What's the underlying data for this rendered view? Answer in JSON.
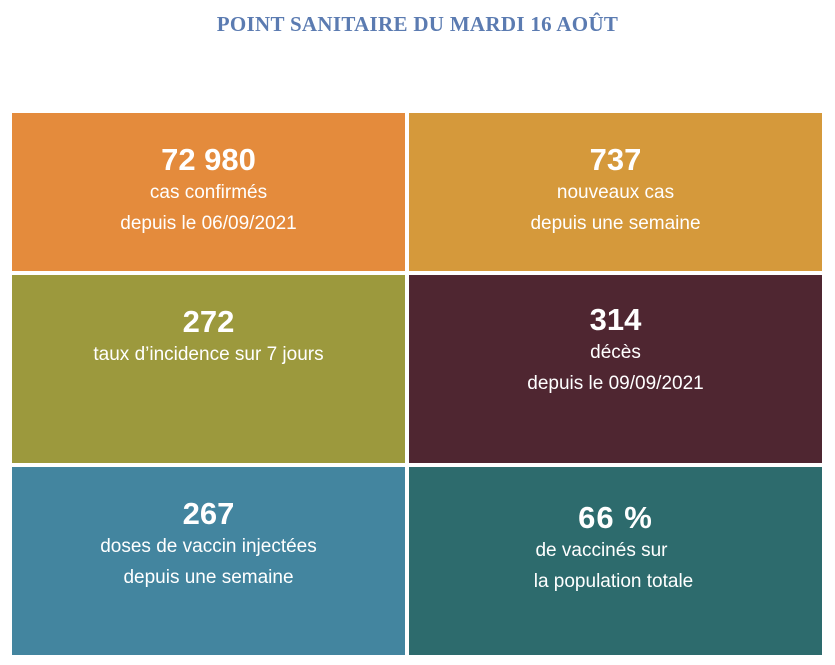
{
  "title": "POINT SANITAIRE DU MARDI 16 AOÛT",
  "tiles": [
    {
      "value": "72 980",
      "line1": "cas confirmés",
      "line2": "depuis le 06/09/2021",
      "color": "#e48b3c"
    },
    {
      "value": "737",
      "line1": "nouveaux cas",
      "line2": "depuis une semaine",
      "color": "#d5993b"
    },
    {
      "value": "272",
      "line1": "taux d’incidence sur 7 jours",
      "color": "#9c993d"
    },
    {
      "value": "314",
      "line1": "décès",
      "line2": "depuis le 09/09/2021",
      "color": "#4f2631"
    },
    {
      "value": "267",
      "line1": "doses de vaccin injectées",
      "line2": "depuis une semaine",
      "color": "#43859f"
    },
    {
      "value": "66 %",
      "line1": "de vaccinés sur",
      "line2": "la population totale",
      "color": "#2d6b6d"
    }
  ]
}
